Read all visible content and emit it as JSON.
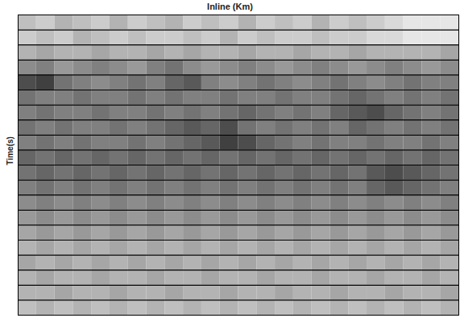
{
  "chart_data": {
    "type": "heatmap",
    "title": "Inline (Km)",
    "y_label": "Time(s)",
    "tick_labels": false,
    "grid": true,
    "zlim": [
      0,
      1
    ],
    "cells": [
      [
        0.25,
        0.2,
        0.3,
        0.25,
        0.2,
        0.3,
        0.2,
        0.25,
        0.3,
        0.2,
        0.25,
        0.2,
        0.3,
        0.2,
        0.25,
        0.2,
        0.3,
        0.2,
        0.25,
        0.2,
        0.15,
        0.1,
        0.1,
        0.1
      ],
      [
        0.2,
        0.25,
        0.2,
        0.3,
        0.25,
        0.2,
        0.25,
        0.2,
        0.2,
        0.25,
        0.2,
        0.3,
        0.2,
        0.25,
        0.2,
        0.2,
        0.25,
        0.2,
        0.2,
        0.15,
        0.15,
        0.1,
        0.1,
        0.1
      ],
      [
        0.3,
        0.35,
        0.3,
        0.3,
        0.35,
        0.3,
        0.3,
        0.35,
        0.3,
        0.35,
        0.3,
        0.3,
        0.35,
        0.3,
        0.3,
        0.35,
        0.3,
        0.3,
        0.35,
        0.3,
        0.3,
        0.3,
        0.3,
        0.35
      ],
      [
        0.45,
        0.5,
        0.4,
        0.45,
        0.5,
        0.45,
        0.4,
        0.5,
        0.55,
        0.45,
        0.4,
        0.45,
        0.5,
        0.45,
        0.4,
        0.45,
        0.5,
        0.45,
        0.4,
        0.45,
        0.5,
        0.45,
        0.4,
        0.45
      ],
      [
        0.7,
        0.75,
        0.55,
        0.5,
        0.45,
        0.5,
        0.55,
        0.5,
        0.6,
        0.65,
        0.5,
        0.45,
        0.5,
        0.55,
        0.5,
        0.45,
        0.5,
        0.55,
        0.5,
        0.45,
        0.5,
        0.55,
        0.5,
        0.5
      ],
      [
        0.55,
        0.5,
        0.5,
        0.55,
        0.5,
        0.5,
        0.55,
        0.5,
        0.55,
        0.5,
        0.5,
        0.55,
        0.5,
        0.5,
        0.55,
        0.5,
        0.5,
        0.55,
        0.6,
        0.55,
        0.5,
        0.55,
        0.5,
        0.55
      ],
      [
        0.5,
        0.55,
        0.5,
        0.5,
        0.55,
        0.5,
        0.5,
        0.55,
        0.5,
        0.55,
        0.5,
        0.55,
        0.6,
        0.55,
        0.5,
        0.55,
        0.5,
        0.6,
        0.65,
        0.7,
        0.6,
        0.55,
        0.5,
        0.55
      ],
      [
        0.55,
        0.5,
        0.55,
        0.5,
        0.5,
        0.55,
        0.5,
        0.55,
        0.6,
        0.65,
        0.6,
        0.7,
        0.55,
        0.5,
        0.55,
        0.5,
        0.55,
        0.5,
        0.6,
        0.55,
        0.5,
        0.55,
        0.5,
        0.55
      ],
      [
        0.5,
        0.55,
        0.5,
        0.55,
        0.5,
        0.5,
        0.55,
        0.5,
        0.55,
        0.6,
        0.65,
        0.75,
        0.7,
        0.6,
        0.55,
        0.5,
        0.55,
        0.5,
        0.5,
        0.55,
        0.5,
        0.5,
        0.55,
        0.5
      ],
      [
        0.6,
        0.55,
        0.6,
        0.55,
        0.6,
        0.55,
        0.6,
        0.55,
        0.6,
        0.55,
        0.6,
        0.55,
        0.6,
        0.55,
        0.6,
        0.55,
        0.6,
        0.55,
        0.6,
        0.55,
        0.6,
        0.55,
        0.6,
        0.55
      ],
      [
        0.55,
        0.6,
        0.55,
        0.6,
        0.55,
        0.6,
        0.55,
        0.6,
        0.55,
        0.6,
        0.55,
        0.6,
        0.55,
        0.6,
        0.55,
        0.6,
        0.55,
        0.6,
        0.55,
        0.65,
        0.7,
        0.65,
        0.6,
        0.55
      ],
      [
        0.5,
        0.55,
        0.5,
        0.55,
        0.5,
        0.55,
        0.5,
        0.55,
        0.5,
        0.55,
        0.5,
        0.55,
        0.5,
        0.55,
        0.5,
        0.55,
        0.5,
        0.55,
        0.5,
        0.6,
        0.65,
        0.6,
        0.55,
        0.5
      ],
      [
        0.45,
        0.5,
        0.45,
        0.5,
        0.45,
        0.5,
        0.45,
        0.5,
        0.45,
        0.5,
        0.45,
        0.5,
        0.45,
        0.5,
        0.45,
        0.5,
        0.45,
        0.5,
        0.45,
        0.5,
        0.45,
        0.5,
        0.45,
        0.5
      ],
      [
        0.4,
        0.45,
        0.4,
        0.45,
        0.4,
        0.45,
        0.4,
        0.45,
        0.4,
        0.45,
        0.4,
        0.45,
        0.4,
        0.45,
        0.4,
        0.45,
        0.4,
        0.45,
        0.4,
        0.45,
        0.4,
        0.45,
        0.4,
        0.45
      ],
      [
        0.35,
        0.4,
        0.35,
        0.4,
        0.35,
        0.4,
        0.35,
        0.4,
        0.35,
        0.4,
        0.35,
        0.4,
        0.35,
        0.4,
        0.35,
        0.4,
        0.35,
        0.4,
        0.35,
        0.4,
        0.35,
        0.4,
        0.35,
        0.4
      ],
      [
        0.3,
        0.35,
        0.3,
        0.35,
        0.3,
        0.35,
        0.3,
        0.35,
        0.3,
        0.35,
        0.3,
        0.35,
        0.3,
        0.35,
        0.3,
        0.35,
        0.3,
        0.35,
        0.3,
        0.35,
        0.3,
        0.35,
        0.3,
        0.35
      ],
      [
        0.35,
        0.3,
        0.35,
        0.3,
        0.35,
        0.3,
        0.35,
        0.3,
        0.35,
        0.3,
        0.35,
        0.3,
        0.35,
        0.3,
        0.35,
        0.3,
        0.35,
        0.3,
        0.35,
        0.3,
        0.35,
        0.3,
        0.35,
        0.3
      ],
      [
        0.3,
        0.35,
        0.3,
        0.3,
        0.35,
        0.3,
        0.3,
        0.35,
        0.3,
        0.3,
        0.35,
        0.3,
        0.3,
        0.35,
        0.3,
        0.3,
        0.35,
        0.3,
        0.3,
        0.35,
        0.3,
        0.3,
        0.35,
        0.3
      ],
      [
        0.3,
        0.3,
        0.35,
        0.3,
        0.3,
        0.35,
        0.3,
        0.3,
        0.35,
        0.3,
        0.3,
        0.35,
        0.3,
        0.3,
        0.35,
        0.3,
        0.3,
        0.35,
        0.3,
        0.3,
        0.35,
        0.3,
        0.3,
        0.35
      ],
      [
        0.25,
        0.3,
        0.25,
        0.3,
        0.25,
        0.3,
        0.25,
        0.3,
        0.25,
        0.3,
        0.25,
        0.3,
        0.25,
        0.3,
        0.25,
        0.3,
        0.25,
        0.3,
        0.25,
        0.3,
        0.25,
        0.3,
        0.25,
        0.3
      ]
    ]
  }
}
